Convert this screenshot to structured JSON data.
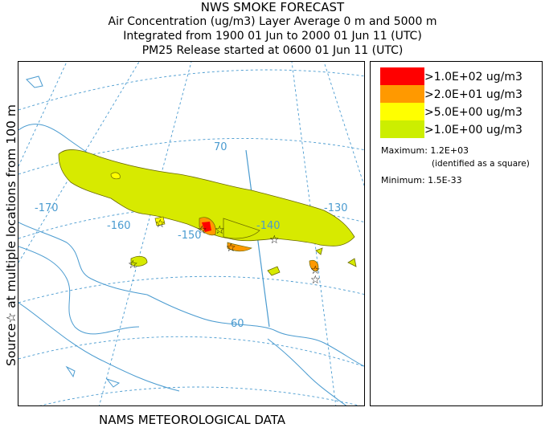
{
  "header": {
    "title": "NWS SMOKE FORECAST",
    "line2": "Air Concentration (ug/m3) Layer Average    0 m and  5000 m",
    "line3": "Integrated from 1900 01 Jun to 2000 01 Jun 11 (UTC)",
    "line4": "PM25 Release started at 0600 01 Jun 11 (UTC)"
  },
  "side_label": "Source☆ at multiple locations   from   100 m",
  "footer_label": "NAMS METEOROLOGICAL DATA",
  "map": {
    "latitude_labels": [
      "70",
      "60"
    ],
    "longitude_labels": [
      "-170",
      "-160",
      "-150",
      "-140",
      "-130"
    ],
    "source_marker": "☆",
    "colors": {
      "coast": "#4a9bd0",
      "grid": "#4a9bd0",
      "level1": "#d7ea00",
      "level2": "#ffff00",
      "level3": "#ff9900",
      "level4": "#ff0000"
    }
  },
  "legend": {
    "levels": [
      {
        "label": ">1.0E+02 ug/m3",
        "color": "#ff0000"
      },
      {
        "label": ">2.0E+01 ug/m3",
        "color": "#ff9900"
      },
      {
        "label": ">5.0E+00 ug/m3",
        "color": "#ffff00"
      },
      {
        "label": ">1.0E+00 ug/m3",
        "color": "#ccee00"
      }
    ],
    "maximum": "Maximum: 1.2E+03",
    "maximum_note": "(identified as a square)",
    "minimum": "Minimum: 1.5E-33"
  }
}
